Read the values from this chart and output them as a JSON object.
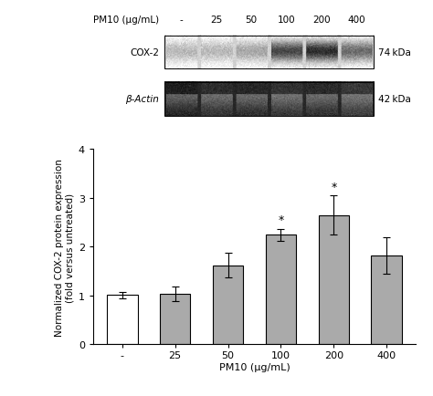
{
  "categories": [
    "-",
    "25",
    "50",
    "100",
    "200",
    "400"
  ],
  "xlabel": "PM10 (μg/mL)",
  "ylabel": "Normalized COX-2 protein expression\n(fold versus untreated)",
  "bar_values": [
    1.01,
    1.04,
    1.62,
    2.25,
    2.65,
    1.82
  ],
  "bar_errors": [
    0.07,
    0.15,
    0.25,
    0.12,
    0.4,
    0.38
  ],
  "bar_colors": [
    "#ffffff",
    "#aaaaaa",
    "#aaaaaa",
    "#aaaaaa",
    "#aaaaaa",
    "#aaaaaa"
  ],
  "bar_edgecolor": "#000000",
  "ylim": [
    0,
    4
  ],
  "yticks": [
    0,
    1,
    2,
    3,
    4
  ],
  "significance": [
    false,
    false,
    false,
    true,
    true,
    false
  ],
  "sig_symbol": "*",
  "western_blot_label_cox": "COX-2",
  "western_blot_label_actin": "β-Actin",
  "kda_cox": "74 kDa",
  "kda_actin": "42 kDa",
  "pm10_label": "PM10 (μg/mL)",
  "pm10_values": [
    "-",
    "25",
    "50",
    "100",
    "200",
    "400"
  ],
  "background_color": "#ffffff",
  "bar_linewidth": 0.8,
  "error_linewidth": 0.8,
  "capsize": 3,
  "cox_intensities": [
    0.28,
    0.28,
    0.35,
    0.72,
    0.82,
    0.58
  ],
  "actin_intensities": [
    0.88,
    0.82,
    0.84,
    0.8,
    0.83,
    0.78
  ]
}
